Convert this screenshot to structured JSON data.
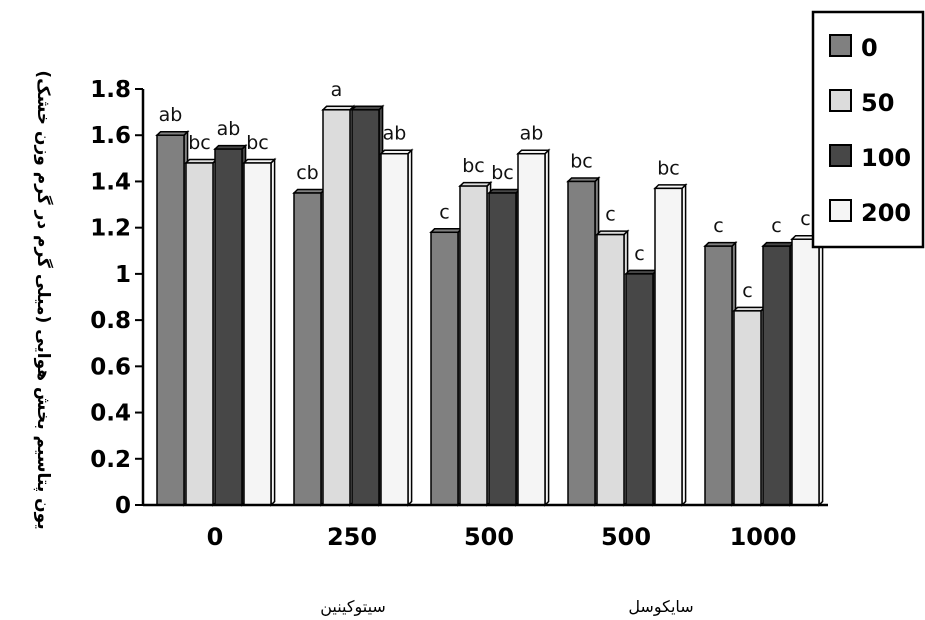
{
  "chart_data": {
    "type": "bar",
    "title": "",
    "ylabel": "یون پتاسیم بخش هوایی (میلی گرم در گرم وزن خشک)",
    "xlabel": "",
    "categories": [
      "0",
      "250",
      "500",
      "500",
      "1000"
    ],
    "group_labels": [
      "سیتوکینین",
      "سایکوسل"
    ],
    "ylim": [
      0,
      1.8
    ],
    "yticks": [
      "0",
      "0.2",
      "0.4",
      "0.6",
      "0.8",
      "1",
      "1.2",
      "1.4",
      "1.6",
      "1.8"
    ],
    "series": [
      {
        "name": "0",
        "color": "#808080",
        "values": [
          1.6,
          1.35,
          1.18,
          1.4,
          1.12
        ],
        "labels": [
          "ab",
          "cb",
          "c",
          "bc",
          "c"
        ]
      },
      {
        "name": "50",
        "color": "#dcdcdc",
        "values": [
          1.48,
          1.71,
          1.38,
          1.17,
          0.84
        ],
        "labels": [
          "bc",
          "a",
          "bc",
          "c",
          "c"
        ]
      },
      {
        "name": "100",
        "color": "#474747",
        "values": [
          1.54,
          1.71,
          1.35,
          1.0,
          1.12
        ],
        "labels": [
          "ab",
          "",
          "bc",
          "c",
          "c"
        ]
      },
      {
        "name": "200",
        "color": "#f5f5f5",
        "values": [
          1.48,
          1.52,
          1.52,
          1.37,
          1.15
        ],
        "labels": [
          "bc",
          "ab",
          "ab",
          "bc",
          "c"
        ]
      }
    ],
    "legend_position": "top-right",
    "grid": false
  }
}
